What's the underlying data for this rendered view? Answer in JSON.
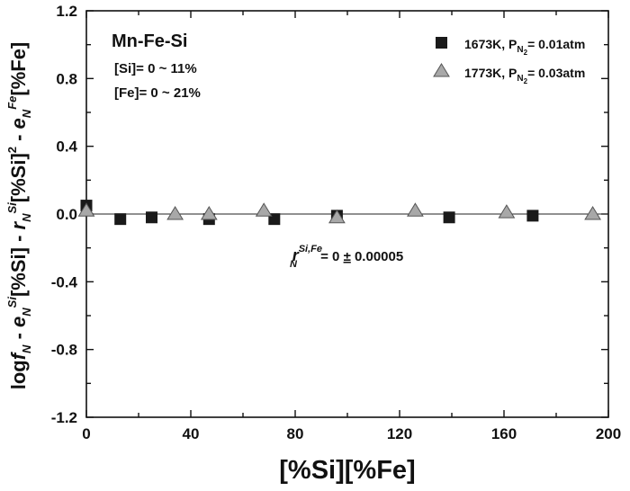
{
  "chart_data": {
    "type": "scatter",
    "xlabel": "[%Si][%Fe]",
    "ylabel_parts": {
      "log": "log",
      "f": "f",
      "N": "N",
      "minus": " - ",
      "e": "e",
      "Si": "Si",
      "pSi": "[%Si]",
      "r": "r",
      "pSi2": "[%Si]",
      "sq": "2",
      "Fe": "Fe",
      "pFe": "[%Fe]"
    },
    "xlim": [
      0,
      200
    ],
    "ylim": [
      -1.2,
      1.2
    ],
    "xticks": [
      "0",
      "40",
      "80",
      "120",
      "160",
      "200"
    ],
    "yticks": [
      "-1.2",
      "-0.8",
      "-0.4",
      "0.0",
      "0.4",
      "0.8",
      "1.2"
    ],
    "reference_line_y": 0,
    "legend_position": "top-right",
    "annotations": {
      "system": "Mn-Fe-Si",
      "si_range": "[Si]= 0 ~ 11%",
      "fe_range": "[Fe]= 0 ~ 21%",
      "fit": {
        "r": "r",
        "sup": "Si,Fe",
        "sub": "N",
        "eq": " = 0 ",
        "pm": "±",
        "val": " 0.00005"
      }
    },
    "series": [
      {
        "name": "1673K, P",
        "name_sub": "N",
        "name_sub2": "2",
        "name_tail": "= 0.01atm",
        "marker": "square",
        "color": "#1a1a1a",
        "x": [
          0,
          13,
          25,
          47,
          72,
          96,
          139,
          171
        ],
        "y": [
          0.05,
          -0.03,
          -0.02,
          -0.03,
          -0.03,
          -0.01,
          -0.02,
          -0.01
        ]
      },
      {
        "name": "1773K, P",
        "name_sub": "N",
        "name_sub2": "2",
        "name_tail": "= 0.03atm",
        "marker": "triangle",
        "color": "#a8a8a8",
        "x": [
          0,
          34,
          47,
          68,
          96,
          126,
          161,
          194
        ],
        "y": [
          0.02,
          0.0,
          0.0,
          0.02,
          -0.02,
          0.02,
          0.01,
          0.0
        ]
      }
    ]
  }
}
